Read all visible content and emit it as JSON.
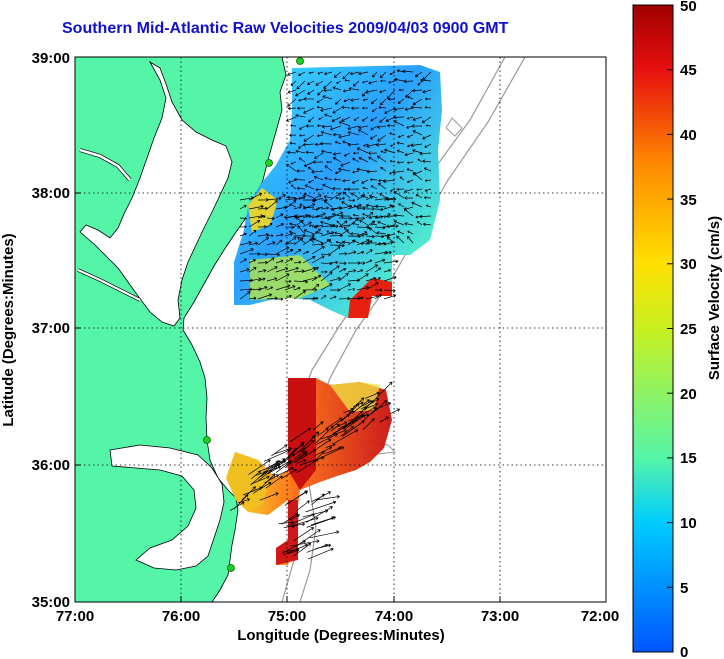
{
  "title": "Southern Mid-Atlantic Raw Velocities 2009/04/03 0900 GMT",
  "x_axis": {
    "label": "Longitude (Degrees:Minutes)",
    "ticks": [
      "77:00",
      "76:00",
      "75:00",
      "74:00",
      "73:00",
      "72:00"
    ]
  },
  "y_axis": {
    "label": "Latitude (Degrees:Minutes)",
    "ticks": [
      "39:00",
      "38:00",
      "37:00",
      "36:00",
      "35:00"
    ]
  },
  "colorbar": {
    "label": "Surface Velocity (cm/s)",
    "ticks": [
      "50",
      "45",
      "40",
      "35",
      "30",
      "25",
      "20",
      "15",
      "10",
      "5",
      "0"
    ],
    "min": 0,
    "max": 50
  },
  "colors": {
    "land": "#55f5a8",
    "water": "#ffffff",
    "title": "#1010d0",
    "coast": "#000000",
    "bathymetry": "#999999",
    "grid": "#000000"
  },
  "map": {
    "lon_range": [
      "77:00",
      "72:00"
    ],
    "lat_range": [
      "35:00",
      "39:00"
    ],
    "grid": "dotted",
    "layers": [
      "land",
      "coastline",
      "bathymetry-contours",
      "velocity-field",
      "velocity-vectors",
      "radar-sites"
    ]
  }
}
